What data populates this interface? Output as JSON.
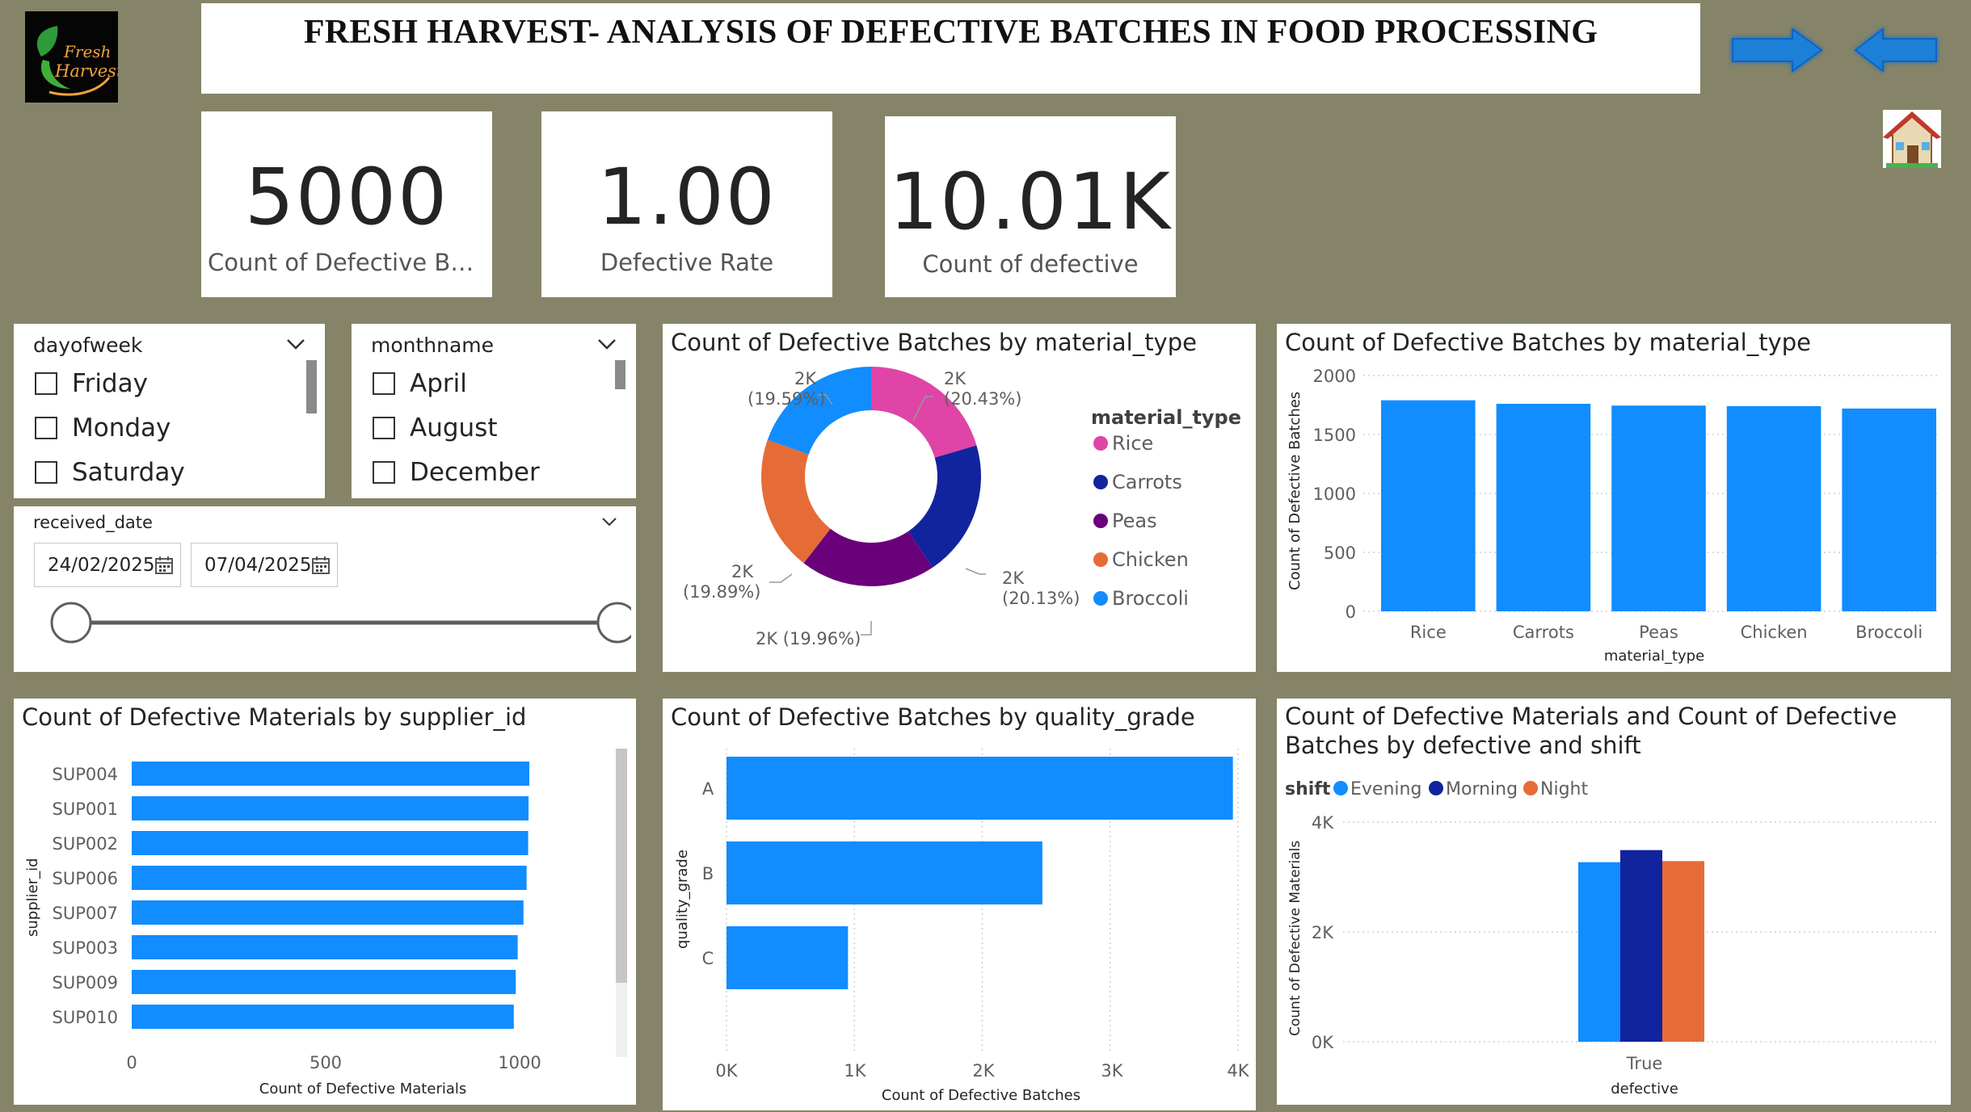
{
  "header": {
    "title": "FRESH HARVEST- ANALYSIS OF DEFECTIVE BATCHES IN FOOD PROCESSING",
    "logo_line1": "Fresh",
    "logo_line2": "Harvest",
    "next_icon": "arrow-right-icon",
    "back_icon": "arrow-left-icon",
    "home_icon": "house-icon"
  },
  "kpis": [
    {
      "value": "5000",
      "label": "Count of Defective Batc..."
    },
    {
      "value": "1.00",
      "label": "Defective Rate"
    },
    {
      "value": "10.01K",
      "label": "Count of defective"
    }
  ],
  "slicers": {
    "dayofweek": {
      "title": "dayofweek",
      "options": [
        "Friday",
        "Monday",
        "Saturday"
      ]
    },
    "monthname": {
      "title": "monthname",
      "options": [
        "April",
        "August",
        "December"
      ]
    },
    "received_date": {
      "title": "received_date",
      "start": "24/02/2025",
      "end": "07/04/2025"
    }
  },
  "colors": {
    "background": "#868468",
    "bar_blue": "#118DFF",
    "navy": "#12239E",
    "orange": "#E66C37",
    "purple": "#6B007B",
    "pink": "#E044A7"
  },
  "donut": {
    "title": "Count of Defective Batches by material_type",
    "legend_title": "material_type",
    "labels": [
      {
        "value": "2K",
        "pct": "(20.43%)"
      },
      {
        "value": "2K",
        "pct": "(20.13%)"
      },
      {
        "value": "2K (19.96%)",
        "pct": ""
      },
      {
        "value": "2K",
        "pct": "(19.89%)"
      },
      {
        "value": "2K",
        "pct": "(19.59%)"
      }
    ]
  },
  "material_bar": {
    "title": "Count of Defective Batches by material_type",
    "xlabel": "material_type",
    "ylabel": "Count of Defective Batches",
    "yticks": [
      "2000",
      "1500",
      "1000",
      "500",
      "0"
    ]
  },
  "supplier_bar": {
    "title": "Count of Defective Materials by supplier_id",
    "xlabel": "Count of Defective Materials",
    "ylabel": "supplier_id",
    "xticks": [
      "0",
      "500",
      "1000"
    ]
  },
  "quality_bar": {
    "title": "Count of Defective Batches by quality_grade",
    "xlabel": "Count of Defective Batches",
    "ylabel": "quality_grade",
    "xticks": [
      "0K",
      "1K",
      "2K",
      "3K",
      "4K"
    ]
  },
  "shift_bar": {
    "title_line1": "Count of Defective Materials and Count of Defective",
    "title_line2": "Batches by defective and shift",
    "legend_title": "shift",
    "xlabel": "defective",
    "ylabel": "Count of Defective Materials",
    "yticks": [
      "4K",
      "2K",
      "0K"
    ]
  },
  "chart_data": [
    {
      "type": "pie",
      "title": "Count of Defective Batches by material_type",
      "categories": [
        "Rice",
        "Carrots",
        "Peas",
        "Chicken",
        "Broccoli"
      ],
      "values": [
        20.43,
        20.13,
        19.96,
        19.89,
        19.59
      ],
      "colors": [
        "#E044A7",
        "#12239E",
        "#6B007B",
        "#E66C37",
        "#118DFF"
      ],
      "legend": "right"
    },
    {
      "type": "bar",
      "title": "Count of Defective Batches by material_type",
      "categories": [
        "Rice",
        "Carrots",
        "Peas",
        "Chicken",
        "Broccoli"
      ],
      "values": [
        1790,
        1760,
        1745,
        1740,
        1720
      ],
      "xlabel": "material_type",
      "ylabel": "Count of Defective Batches",
      "ylim": [
        0,
        2000
      ],
      "grid": true
    },
    {
      "type": "bar",
      "orientation": "horizontal",
      "title": "Count of Defective Materials by supplier_id",
      "categories": [
        "SUP004",
        "SUP001",
        "SUP002",
        "SUP006",
        "SUP007",
        "SUP003",
        "SUP009",
        "SUP010"
      ],
      "values": [
        1025,
        1023,
        1022,
        1018,
        1010,
        995,
        990,
        985
      ],
      "xlabel": "Count of Defective Materials",
      "ylabel": "supplier_id",
      "xlim": [
        0,
        1000
      ]
    },
    {
      "type": "bar",
      "orientation": "horizontal",
      "title": "Count of Defective Batches by quality_grade",
      "categories": [
        "A",
        "B",
        "C"
      ],
      "values": [
        3960,
        2470,
        950
      ],
      "xlabel": "Count of Defective Batches",
      "ylabel": "quality_grade",
      "xlim": [
        0,
        4000
      ],
      "grid": true
    },
    {
      "type": "bar",
      "title": "Count of Defective Materials and Count of Defective Batches by defective and shift",
      "categories": [
        "True"
      ],
      "series": [
        {
          "name": "Evening",
          "values": [
            3270
          ],
          "color": "#118DFF"
        },
        {
          "name": "Morning",
          "values": [
            3490
          ],
          "color": "#12239E"
        },
        {
          "name": "Night",
          "values": [
            3290
          ],
          "color": "#E66C37"
        }
      ],
      "xlabel": "defective",
      "ylabel": "Count of Defective Materials",
      "ylim": [
        0,
        4000
      ],
      "legend": "top-left",
      "grid": true
    }
  ]
}
